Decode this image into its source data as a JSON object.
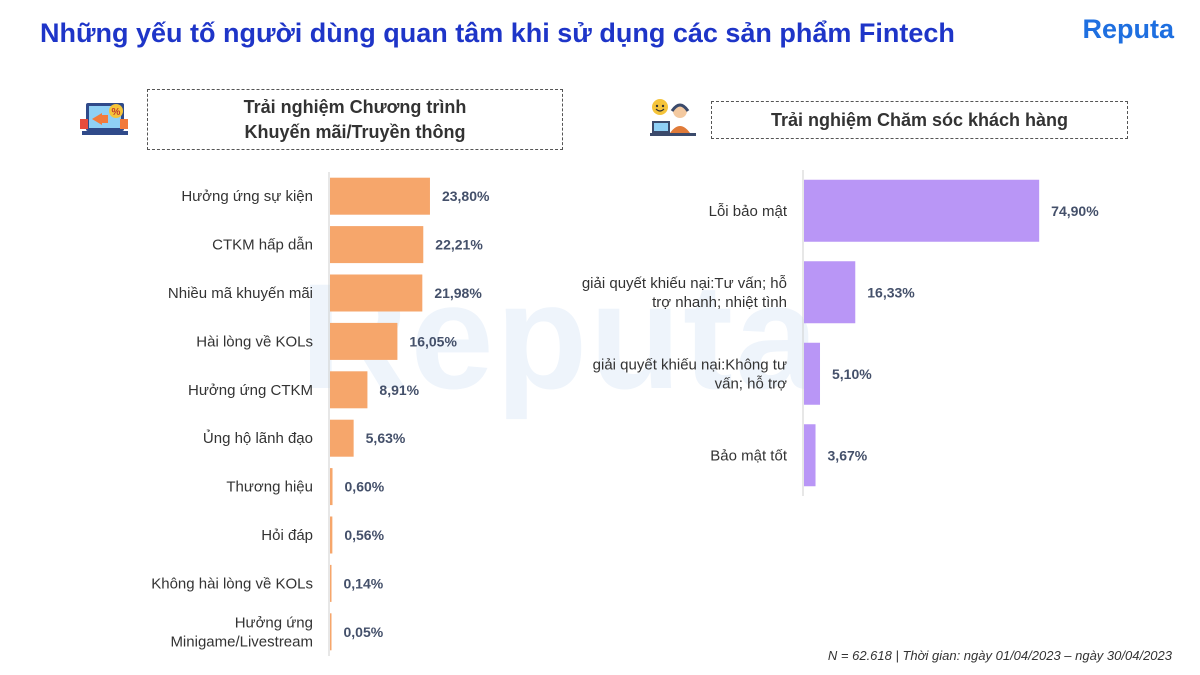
{
  "title": "Những yếu tố người dùng quan tâm khi sử dụng các sản phẩm Fintech",
  "logo": "Reputa",
  "watermark": "Reputa",
  "footnote": "N = 62.618 | Thời gian: ngày 01/04/2023 – ngày 30/04/2023",
  "colors": {
    "left_bar": "#f6a66b",
    "right_bar": "#b996f6",
    "title": "#1e35c8"
  },
  "chart_data": [
    {
      "type": "bar",
      "orientation": "horizontal",
      "title": "Trải nghiệm Chương trình\nKhuyến mãi/Truyền thông",
      "icon": "promotion-megaphone-icon",
      "categories": [
        [
          "Hưởng ứng sự kiện"
        ],
        [
          "CTKM hấp dẫn"
        ],
        [
          "Nhiều mã khuyến mãi"
        ],
        [
          "Hài lòng về KOLs"
        ],
        [
          "Hưởng ứng CTKM"
        ],
        [
          "Ủng hộ lãnh đạo"
        ],
        [
          "Thương hiệu"
        ],
        [
          "Hỏi đáp"
        ],
        [
          "Không hài lòng về KOLs"
        ],
        [
          "Hưởng ứng",
          "Minigame/Livestream"
        ]
      ],
      "values": [
        23.8,
        22.21,
        21.98,
        16.05,
        8.91,
        5.63,
        0.6,
        0.56,
        0.14,
        0.05
      ],
      "value_labels": [
        "23,80%",
        "22,21%",
        "21,98%",
        "16,05%",
        "8,91%",
        "5,63%",
        "0,60%",
        "0,56%",
        "0,14%",
        "0,05%"
      ],
      "xlim": [
        0,
        100
      ],
      "grid": false
    },
    {
      "type": "bar",
      "orientation": "horizontal",
      "title": "Trải nghiệm Chăm sóc khách hàng",
      "icon": "customer-support-icon",
      "categories": [
        [
          "Lỗi bảo mật"
        ],
        [
          "giải quyết khiếu nại:Tư vấn; hỗ",
          "trợ nhanh; nhiệt tình"
        ],
        [
          "giải quyết khiếu nại:Không tư",
          "vấn; hỗ trợ"
        ],
        [
          "Bảo mật tốt"
        ]
      ],
      "values": [
        74.9,
        16.33,
        5.1,
        3.67
      ],
      "value_labels": [
        "74,90%",
        "16,33%",
        "5,10%",
        "3,67%"
      ],
      "xlim": [
        0,
        100
      ],
      "grid": false
    }
  ]
}
